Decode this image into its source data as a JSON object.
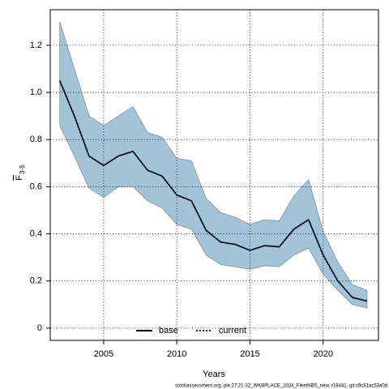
{
  "chart_data": {
    "type": "line",
    "x_label": "Years",
    "y_label": {
      "symbol": "F",
      "subscript": "3-5"
    },
    "footer": "stockassessment.org, ple.27.21-32_WKBPLACE_2024_FleetNBS_new, r18441, git:c9c81ac53a0d",
    "x": [
      2002,
      2003,
      2004,
      2005,
      2006,
      2007,
      2008,
      2009,
      2010,
      2011,
      2012,
      2013,
      2014,
      2015,
      2016,
      2017,
      2018,
      2019,
      2020,
      2021,
      2022,
      2023
    ],
    "series": [
      {
        "name": "base",
        "color": "#000000",
        "dash": false,
        "values": [
          1.05,
          0.9,
          0.73,
          0.69,
          0.73,
          0.75,
          0.67,
          0.645,
          0.565,
          0.54,
          0.415,
          0.365,
          0.355,
          0.33,
          0.35,
          0.345,
          0.42,
          0.46,
          0.31,
          0.2,
          0.13,
          0.115
        ]
      },
      {
        "name": "current",
        "color": "#0a1a3a",
        "dash": true,
        "values": [
          1.05,
          0.9,
          0.73,
          0.69,
          0.73,
          0.75,
          0.67,
          0.645,
          0.565,
          0.54,
          0.415,
          0.365,
          0.355,
          0.33,
          0.35,
          0.345,
          0.42,
          0.46,
          0.31,
          0.2,
          0.13,
          0.115
        ]
      }
    ],
    "band": {
      "color": "#a3c4d8",
      "upper": [
        1.3,
        1.1,
        0.9,
        0.86,
        0.9,
        0.94,
        0.83,
        0.81,
        0.72,
        0.71,
        0.55,
        0.49,
        0.47,
        0.44,
        0.46,
        0.455,
        0.56,
        0.63,
        0.41,
        0.28,
        0.185,
        0.16
      ],
      "lower": [
        0.86,
        0.73,
        0.595,
        0.555,
        0.6,
        0.6,
        0.54,
        0.51,
        0.44,
        0.42,
        0.31,
        0.27,
        0.26,
        0.25,
        0.265,
        0.26,
        0.31,
        0.34,
        0.23,
        0.16,
        0.1,
        0.085
      ]
    },
    "xlim": [
      2001.35,
      2023.78
    ],
    "ylim": [
      -0.052,
      1.351
    ],
    "xticks": [
      2005,
      2010,
      2015,
      2020
    ],
    "yticks": [
      0,
      {
        "value": 0.2,
        "label": "0.2"
      },
      {
        "value": 0.4,
        "label": "0.4"
      },
      {
        "value": 0.6,
        "label": "0.6"
      },
      {
        "value": 0.8,
        "label": "0.8"
      },
      {
        "value": 1.0,
        "label": "1.0"
      },
      {
        "value": 1.2,
        "label": "1.2"
      }
    ],
    "grid": true,
    "legend": "bottom"
  }
}
